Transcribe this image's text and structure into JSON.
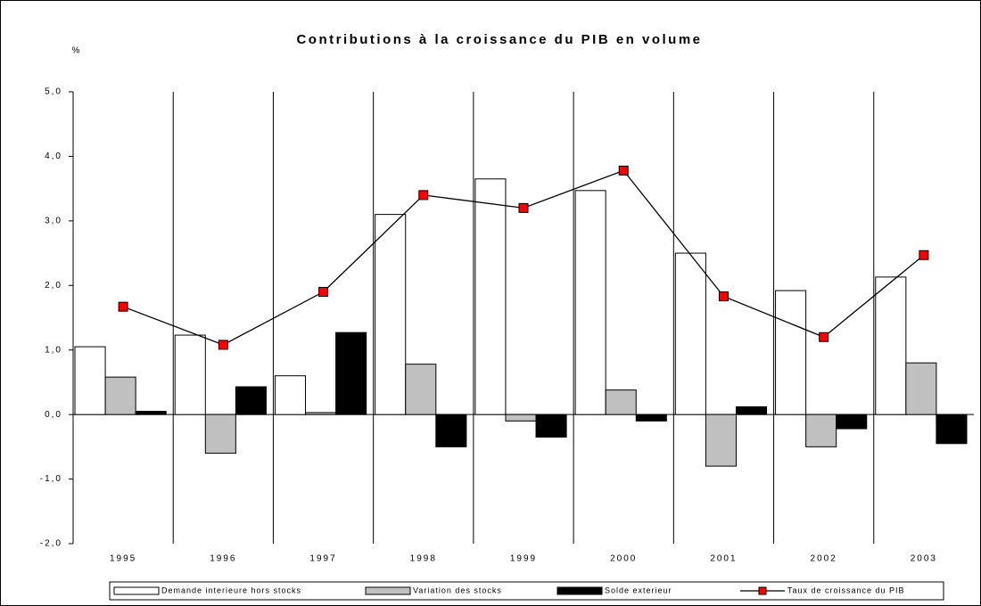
{
  "chart_data": {
    "type": "bar_line",
    "title": "Contributions à la croissance du PIB en volume",
    "y_label": "%",
    "categories": [
      "1995",
      "1996",
      "1997",
      "1998",
      "1999",
      "2000",
      "2001",
      "2002",
      "2003"
    ],
    "series": [
      {
        "name": "Demande interieure hors stocks",
        "type": "bar",
        "color": "#ffffff",
        "values": [
          1.05,
          1.23,
          0.6,
          3.1,
          3.65,
          3.47,
          2.5,
          1.92,
          2.13
        ]
      },
      {
        "name": "Variation des stocks",
        "type": "bar",
        "color": "#c0c0c0",
        "values": [
          0.58,
          -0.6,
          0.03,
          0.78,
          -0.1,
          0.38,
          -0.8,
          -0.5,
          0.8
        ]
      },
      {
        "name": "Solde exterieur",
        "type": "bar",
        "color": "#000000",
        "values": [
          0.05,
          0.43,
          1.27,
          -0.5,
          -0.35,
          -0.1,
          0.12,
          -0.22,
          -0.45
        ]
      },
      {
        "name": "Taux de croissance du PIB",
        "type": "line",
        "color": "#ff0000",
        "values": [
          1.67,
          1.08,
          1.9,
          3.4,
          3.2,
          3.78,
          1.83,
          1.2,
          2.47
        ]
      }
    ],
    "ylim": [
      -2,
      5
    ],
    "yticks": [
      {
        "value": -2,
        "label": "-2,0"
      },
      {
        "value": -1,
        "label": "-1,0"
      },
      {
        "value": 0,
        "label": "0,0"
      },
      {
        "value": 1,
        "label": "1,0"
      },
      {
        "value": 2,
        "label": "2,0"
      },
      {
        "value": 3,
        "label": "3,0"
      },
      {
        "value": 4,
        "label": "4,0"
      },
      {
        "value": 5,
        "label": "5,0"
      }
    ],
    "legend": "bottom"
  }
}
